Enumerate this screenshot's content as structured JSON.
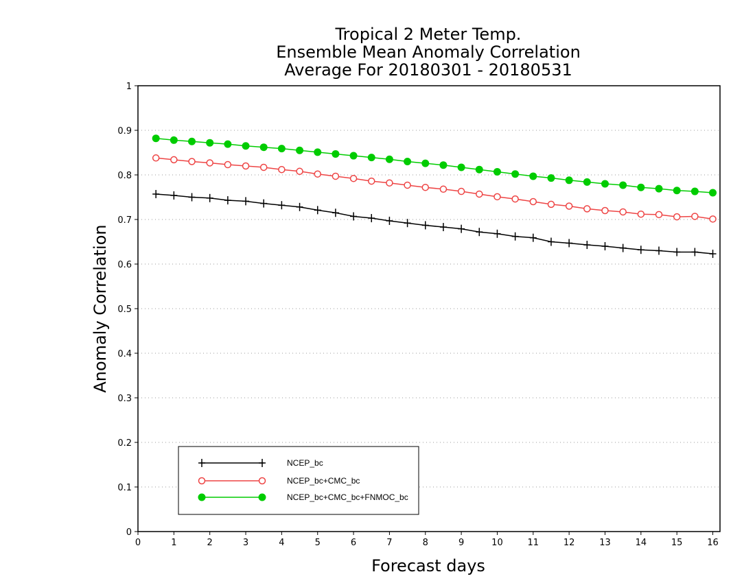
{
  "chart_data": {
    "type": "line",
    "title": [
      "Tropical 2 Meter Temp.",
      "Ensemble Mean Anomaly Correlation",
      "Average For 20180301 - 20180531"
    ],
    "xlabel": "Forecast days",
    "ylabel": "Anomaly Correlation",
    "xlim": [
      0,
      16.2
    ],
    "ylim": [
      0,
      1
    ],
    "xticks": [
      0,
      1,
      2,
      3,
      4,
      5,
      6,
      7,
      8,
      9,
      10,
      11,
      12,
      13,
      14,
      15,
      16
    ],
    "yticks": [
      0,
      0.1,
      0.2,
      0.3,
      0.4,
      0.5,
      0.6,
      0.7,
      0.8,
      0.9,
      1
    ],
    "grid": "horizontal dotted",
    "legend_position": "bottom-left",
    "x": [
      0.5,
      1,
      1.5,
      2,
      2.5,
      3,
      3.5,
      4,
      4.5,
      5,
      5.5,
      6,
      6.5,
      7,
      7.5,
      8,
      8.5,
      9,
      9.5,
      10,
      10.5,
      11,
      11.5,
      12,
      12.5,
      13,
      13.5,
      14,
      14.5,
      15,
      15.5,
      16
    ],
    "series": [
      {
        "name": "NCEP_bc",
        "color": "#000000",
        "marker": "plus",
        "values": [
          0.757,
          0.754,
          0.75,
          0.748,
          0.743,
          0.741,
          0.736,
          0.732,
          0.728,
          0.721,
          0.715,
          0.707,
          0.703,
          0.697,
          0.692,
          0.687,
          0.683,
          0.679,
          0.672,
          0.668,
          0.662,
          0.659,
          0.65,
          0.647,
          0.643,
          0.64,
          0.636,
          0.632,
          0.63,
          0.627,
          0.627,
          0.623
        ]
      },
      {
        "name": "NCEP_bc+CMC_bc",
        "color": "#ee4444",
        "marker": "open-circle",
        "values": [
          0.838,
          0.834,
          0.83,
          0.827,
          0.823,
          0.82,
          0.817,
          0.812,
          0.808,
          0.802,
          0.797,
          0.792,
          0.786,
          0.782,
          0.777,
          0.772,
          0.768,
          0.763,
          0.757,
          0.751,
          0.746,
          0.74,
          0.734,
          0.73,
          0.724,
          0.72,
          0.717,
          0.712,
          0.711,
          0.706,
          0.707,
          0.701
        ]
      },
      {
        "name": "NCEP_bc+CMC_bc+FNMOC_bc",
        "color": "#00cc00",
        "marker": "filled-circle",
        "values": [
          0.882,
          0.878,
          0.875,
          0.872,
          0.869,
          0.865,
          0.862,
          0.859,
          0.855,
          0.851,
          0.847,
          0.843,
          0.839,
          0.835,
          0.83,
          0.826,
          0.822,
          0.817,
          0.812,
          0.807,
          0.802,
          0.797,
          0.793,
          0.788,
          0.784,
          0.78,
          0.777,
          0.772,
          0.769,
          0.765,
          0.763,
          0.76
        ]
      }
    ]
  }
}
